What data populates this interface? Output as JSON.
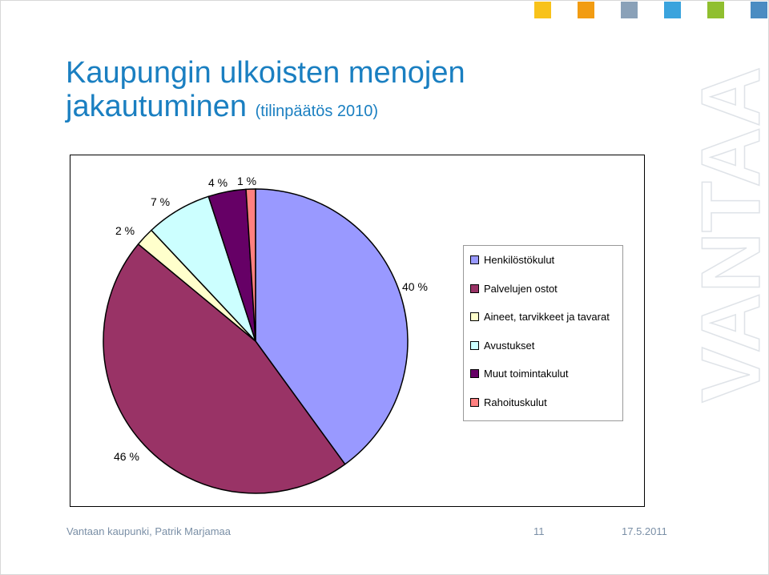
{
  "title": {
    "line1": "Kaupungin ulkoisten menojen",
    "line2": "jakautuminen",
    "subtitle": "(tilinpäätös 2010)"
  },
  "brand": {
    "watermark": "VANTAA",
    "squares": [
      "#f8c21a",
      "#f29c12",
      "#8aa1b8",
      "#3aa3dd",
      "#90bf2f",
      "#4a8cc2"
    ]
  },
  "chart_data": {
    "type": "pie",
    "title": "",
    "slices": [
      {
        "label": "Henkilöstökulut",
        "value": 40,
        "value_label": "40 %",
        "color": "#9999ff"
      },
      {
        "label": "Palvelujen ostot",
        "value": 46,
        "value_label": "46 %",
        "color": "#993366"
      },
      {
        "label": "Aineet, tarvikkeet ja tavarat",
        "value": 2,
        "value_label": "2 %",
        "color": "#ffffcc"
      },
      {
        "label": "Avustukset",
        "value": 7,
        "value_label": "7 %",
        "color": "#ccffff"
      },
      {
        "label": "Muut toimintakulut",
        "value": 4,
        "value_label": "4 %",
        "color": "#660066"
      },
      {
        "label": "Rahoituskulut",
        "value": 1,
        "value_label": "1 %",
        "color": "#ff8080"
      }
    ],
    "legend_position": "right"
  },
  "footer": {
    "author": "Vantaan kaupunki, Patrik Marjamaa",
    "page": "11",
    "date": "17.5.2011"
  }
}
